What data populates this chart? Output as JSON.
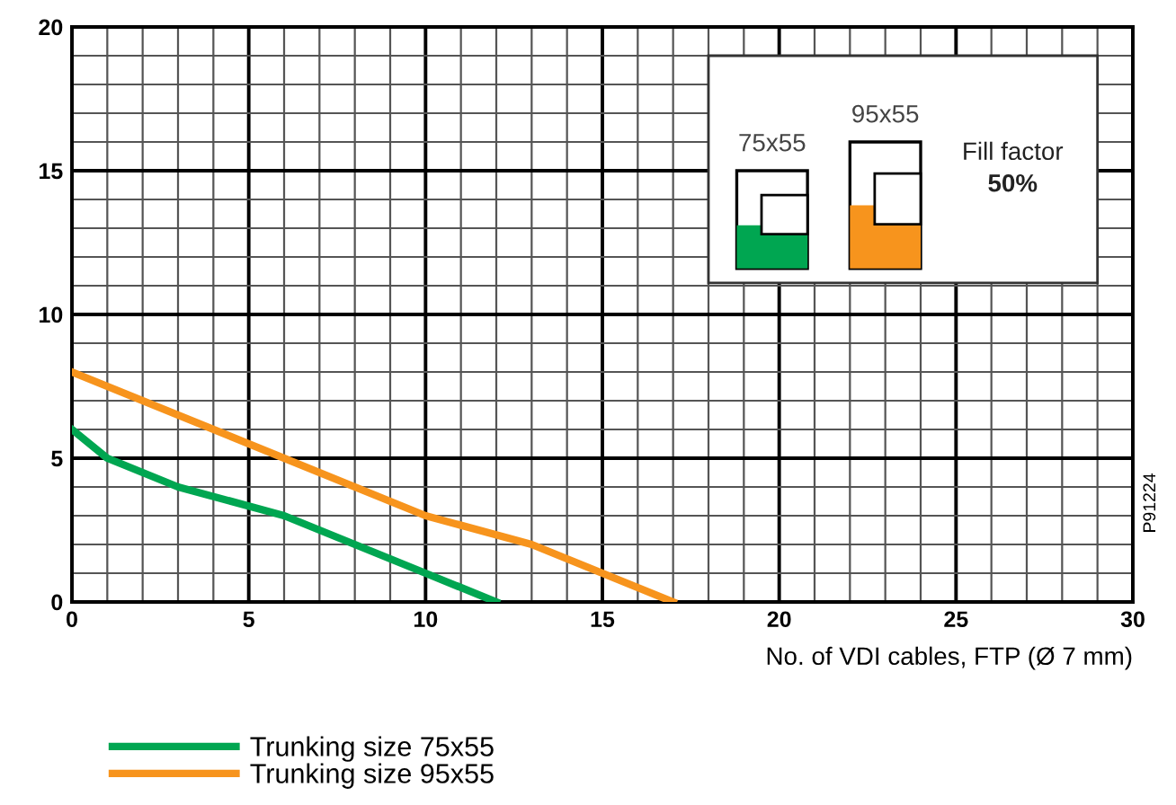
{
  "chart_data": {
    "type": "line",
    "xlabel": "No. of VDI cables, FTP (Ø 7 mm)",
    "xlim": [
      0,
      30
    ],
    "ylim": [
      0,
      20
    ],
    "xticks": [
      0,
      {
        "value": 1,
        "label": null
      },
      {
        "value": 2,
        "label": null
      },
      {
        "value": 3,
        "label": null
      },
      {
        "value": 4,
        "label": null
      },
      5,
      {
        "value": 6,
        "label": null
      },
      {
        "value": 7,
        "label": null
      },
      {
        "value": 8,
        "label": null
      },
      {
        "value": 9,
        "label": null
      },
      10,
      {
        "value": 11,
        "label": null
      },
      {
        "value": 12,
        "label": null
      },
      {
        "value": 13,
        "label": null
      },
      {
        "value": 14,
        "label": null
      },
      15,
      {
        "value": 16,
        "label": null
      },
      {
        "value": 17,
        "label": null
      },
      {
        "value": 18,
        "label": null
      },
      {
        "value": 19,
        "label": null
      },
      20,
      {
        "value": 21,
        "label": null
      },
      {
        "value": 22,
        "label": null
      },
      {
        "value": 23,
        "label": null
      },
      {
        "value": 24,
        "label": null
      },
      25,
      {
        "value": 26,
        "label": null
      },
      {
        "value": 27,
        "label": null
      },
      {
        "value": 28,
        "label": null
      },
      {
        "value": 29,
        "label": null
      },
      30
    ],
    "yticks": [
      0,
      {
        "value": 1,
        "label": null
      },
      {
        "value": 2,
        "label": null
      },
      {
        "value": 3,
        "label": null
      },
      {
        "value": 4,
        "label": null
      },
      5,
      {
        "value": 6,
        "label": null
      },
      {
        "value": 7,
        "label": null
      },
      {
        "value": 8,
        "label": null
      },
      {
        "value": 9,
        "label": null
      },
      10,
      {
        "value": 11,
        "label": null
      },
      {
        "value": 12,
        "label": null
      },
      {
        "value": 13,
        "label": null
      },
      {
        "value": 14,
        "label": null
      },
      15,
      {
        "value": 16,
        "label": null
      },
      {
        "value": 17,
        "label": null
      },
      {
        "value": 18,
        "label": null
      },
      {
        "value": 19,
        "label": null
      },
      20
    ],
    "grid": true,
    "legend": "bottom left",
    "marker": "none",
    "line_style": "solid",
    "series": [
      {
        "name": "Trunking size 75x55",
        "color": "#00a651",
        "x": [
          0,
          1,
          3,
          6,
          10,
          12
        ],
        "values": [
          6,
          5,
          4,
          3,
          1,
          0
        ]
      },
      {
        "name": "Trunking size 95x55",
        "color": "#f7941d",
        "x": [
          0,
          10,
          13,
          17
        ],
        "values": [
          8,
          3,
          2,
          0
        ]
      }
    ],
    "annotations": [
      "75x55",
      "95x55",
      "Fill factor",
      "50%",
      "P91224"
    ]
  }
}
